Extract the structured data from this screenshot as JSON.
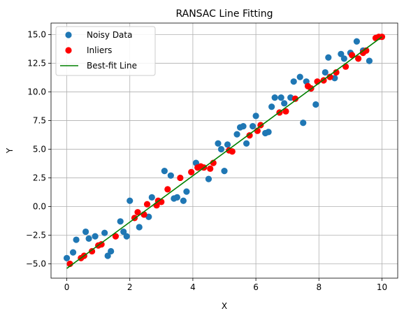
{
  "chart_data": {
    "type": "scatter",
    "title": "RANSAC Line Fitting",
    "xlabel": "X",
    "ylabel": "Y",
    "xlim": [
      -0.5,
      10.5
    ],
    "ylim": [
      -6.25,
      16.0
    ],
    "xticks": [
      0,
      2,
      4,
      6,
      8,
      10
    ],
    "yticks": [
      -5.0,
      -2.5,
      0.0,
      2.5,
      5.0,
      7.5,
      10.0,
      12.5,
      15.0
    ],
    "xtick_labels": [
      "0",
      "2",
      "4",
      "6",
      "8",
      "10"
    ],
    "ytick_labels": [
      "−5.0",
      "−2.5",
      "0.0",
      "2.5",
      "5.0",
      "7.5",
      "10.0",
      "12.5",
      "15.0"
    ],
    "grid": true,
    "legend_position": "top-left",
    "series": [
      {
        "name": "Noisy Data",
        "kind": "scatter",
        "color": "#1f77b4",
        "x": [
          0.0,
          0.2,
          0.3,
          0.6,
          0.7,
          0.9,
          1.2,
          1.3,
          1.4,
          1.7,
          1.8,
          1.9,
          2.0,
          2.3,
          2.6,
          2.7,
          3.1,
          3.3,
          3.4,
          3.5,
          3.7,
          3.8,
          4.1,
          4.5,
          4.8,
          4.9,
          5.0,
          5.1,
          5.4,
          5.5,
          5.6,
          5.7,
          5.9,
          6.0,
          6.3,
          6.4,
          6.5,
          6.6,
          6.8,
          6.9,
          7.1,
          7.2,
          7.4,
          7.5,
          7.6,
          7.9,
          8.2,
          8.3,
          8.5,
          8.7,
          8.8,
          9.0,
          9.2,
          9.4,
          9.6
        ],
        "y": [
          -4.5,
          -4.0,
          -2.9,
          -2.2,
          -2.8,
          -2.6,
          -2.3,
          -4.3,
          -3.9,
          -1.3,
          -2.2,
          -2.6,
          0.5,
          -1.8,
          -0.9,
          0.8,
          3.1,
          2.7,
          0.7,
          0.8,
          0.5,
          1.3,
          3.8,
          2.4,
          5.5,
          5.0,
          3.1,
          5.4,
          6.3,
          6.9,
          7.0,
          5.5,
          7.0,
          7.9,
          6.4,
          6.5,
          8.7,
          9.5,
          9.5,
          9.0,
          9.5,
          10.9,
          11.3,
          7.3,
          10.9,
          8.9,
          11.7,
          13.0,
          11.2,
          13.3,
          12.9,
          13.4,
          14.4,
          13.6,
          12.7
        ]
      },
      {
        "name": "Inliers",
        "kind": "scatter",
        "color": "#ff0000",
        "x": [
          0.1,
          0.45,
          0.55,
          0.8,
          1.0,
          1.1,
          1.55,
          2.15,
          2.25,
          2.45,
          2.55,
          2.85,
          2.9,
          3.0,
          3.2,
          3.6,
          3.95,
          4.15,
          4.25,
          4.35,
          4.55,
          4.65,
          5.15,
          5.25,
          5.8,
          6.05,
          6.15,
          6.75,
          6.95,
          7.25,
          7.65,
          7.75,
          7.95,
          8.15,
          8.35,
          8.55,
          8.85,
          9.05,
          9.25,
          9.4,
          9.5,
          9.8,
          9.9,
          10.0
        ],
        "y": [
          -5.0,
          -4.5,
          -4.3,
          -3.9,
          -3.4,
          -3.3,
          -2.6,
          -1.0,
          -0.5,
          -0.7,
          0.2,
          0.1,
          0.5,
          0.4,
          1.5,
          2.5,
          3.0,
          3.4,
          3.5,
          3.4,
          3.3,
          3.8,
          4.9,
          4.8,
          6.2,
          6.6,
          7.1,
          8.2,
          8.3,
          9.4,
          10.5,
          10.3,
          10.9,
          11.0,
          11.3,
          11.7,
          12.2,
          13.2,
          12.9,
          13.4,
          13.6,
          14.7,
          14.8,
          14.8
        ]
      },
      {
        "name": "Best-fit Line",
        "kind": "line",
        "color": "#008000",
        "x": [
          0.0,
          10.0
        ],
        "y": [
          -5.4,
          14.8
        ]
      }
    ]
  }
}
